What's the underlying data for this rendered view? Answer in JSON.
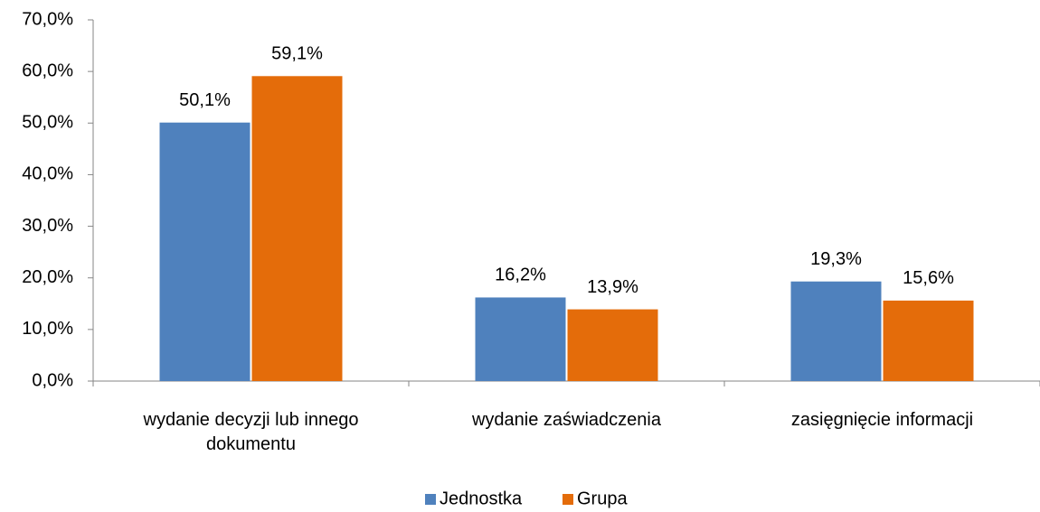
{
  "chart_data": {
    "type": "bar",
    "categories": [
      "wydanie decyzji lub innego dokumentu",
      "wydanie zaświadczenia",
      "zasięgnięcie informacji"
    ],
    "series": [
      {
        "name": "Jednostka",
        "color": "#4f81bd",
        "values": [
          50.1,
          16.2,
          19.3
        ],
        "value_labels": [
          "50,1%",
          "16,2%",
          "19,3%"
        ]
      },
      {
        "name": "Grupa",
        "color": "#e46c0a",
        "values": [
          59.1,
          13.9,
          15.6
        ],
        "value_labels": [
          "59,1%",
          "13,9%",
          "15,6%"
        ]
      }
    ],
    "ylim": [
      0,
      70
    ],
    "yticks": [
      {
        "value": 0,
        "label": "0,0%"
      },
      {
        "value": 10,
        "label": "10,0%"
      },
      {
        "value": 20,
        "label": "20,0%"
      },
      {
        "value": 30,
        "label": "30,0%"
      },
      {
        "value": 40,
        "label": "40,0%"
      },
      {
        "value": 50,
        "label": "50,0%"
      },
      {
        "value": 60,
        "label": "60,0%"
      },
      {
        "value": 70,
        "label": "70,0%"
      }
    ],
    "grid": false,
    "legend": "bottom"
  }
}
